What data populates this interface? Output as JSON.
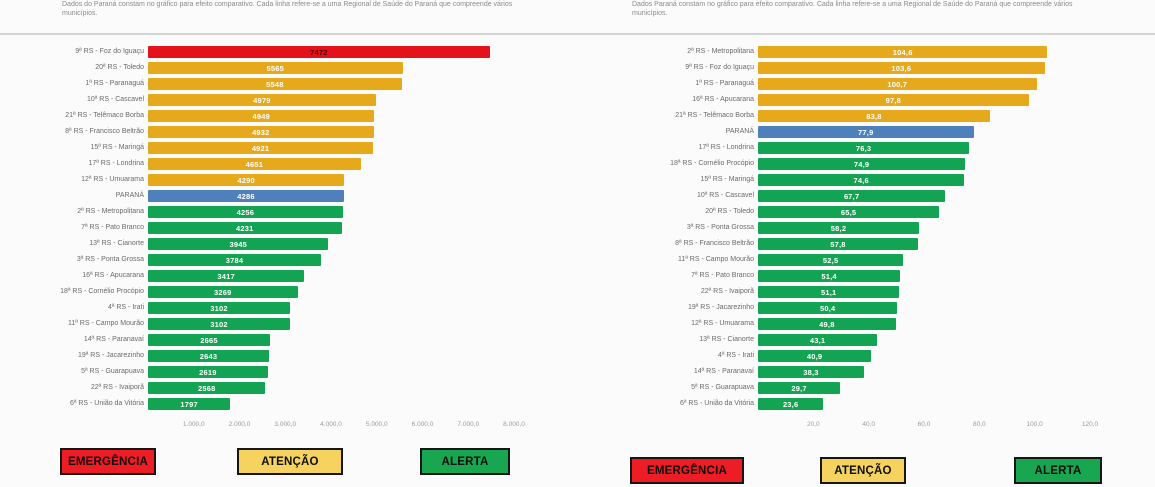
{
  "palette": {
    "red": "#e4131b",
    "yellow": "#e6a91c",
    "green": "#13a453",
    "blue": "#4e80bc"
  },
  "legend_palette": {
    "red": "#ee1c24",
    "yellow": "#f6d35e",
    "green": "#18a750"
  },
  "chart_data": [
    {
      "type": "bar",
      "orientation": "horizontal",
      "note": "Dados do Paraná constam no gráfico para efeito comparativo. Cada linha refere-se a uma Regional de Saúde do Paraná que compreende vários municípios.",
      "categories": [
        "9ª RS - Foz do Iguaçu",
        "20ª RS - Toledo",
        "1ª RS - Paranaguá",
        "10ª RS - Cascavel",
        "21ª RS - Telêmaco Borba",
        "8ª RS - Francisco Beltrão",
        "15ª RS - Maringá",
        "17ª RS - Londrina",
        "12ª RS - Umuarama",
        "PARANÁ",
        "2ª RS - Metropolitana",
        "7ª RS - Pato Branco",
        "13ª RS - Cianorte",
        "3ª RS - Ponta Grossa",
        "16ª RS - Apucarana",
        "18ª RS - Cornélio Procópio",
        "4ª RS - Irati",
        "11ª RS - Campo Mourão",
        "14ª RS - Paranavaí",
        "19ª RS - Jacarezinho",
        "5ª RS - Guarapuava",
        "22ª RS - Ivaiporã",
        "6ª RS - União da Vitória"
      ],
      "values": [
        7472,
        5565,
        5548,
        4979,
        4949,
        4932,
        4921,
        4651,
        4290,
        4286,
        4256,
        4231,
        3945,
        3784,
        3417,
        3269,
        3102,
        3102,
        2665,
        2643,
        2619,
        2568,
        1797
      ],
      "value_labels": [
        "7472",
        "5565",
        "5548",
        "4979",
        "4949",
        "4932",
        "4921",
        "4651",
        "4290",
        "4286",
        "4256",
        "4231",
        "3945",
        "3784",
        "3417",
        "3269",
        "3102",
        "3102",
        "2665",
        "2643",
        "2619",
        "2568",
        "1797"
      ],
      "row_colors": [
        "red",
        "yellow",
        "yellow",
        "yellow",
        "yellow",
        "yellow",
        "yellow",
        "yellow",
        "yellow",
        "blue",
        "green",
        "green",
        "green",
        "green",
        "green",
        "green",
        "green",
        "green",
        "green",
        "green",
        "green",
        "green",
        "green"
      ],
      "xlim": [
        0,
        8000
      ],
      "xtick_values": [
        1000,
        2000,
        3000,
        4000,
        5000,
        6000,
        7000,
        8000
      ],
      "xtick_labels": [
        "1.000,0",
        "2.000,0",
        "3.000,0",
        "4.000,0",
        "5.000,0",
        "6.000,0",
        "7.000,0",
        "8.000,0"
      ],
      "grid": "off",
      "legend": [
        {
          "label": "EMERGÊNCIA",
          "color": "red"
        },
        {
          "label": "ATENÇÃO",
          "color": "yellow"
        },
        {
          "label": "ALERTA",
          "color": "green"
        }
      ]
    },
    {
      "type": "bar",
      "orientation": "horizontal",
      "note": "Dados Paraná constam no gráfico para efeito comparativo. Cada linha refere-se a uma Regional de Saúde do Paraná que compreende vários municípios.",
      "categories": [
        "2ª RS - Metropolitana",
        "9ª RS - Foz do Iguaçu",
        "1ª RS - Paranaguá",
        "16ª RS - Apucarana",
        "21ª RS - Telêmaco Borba",
        "PARANÁ",
        "17ª RS - Londrina",
        "18ª RS - Cornélio Procópio",
        "15ª RS - Maringá",
        "10ª RS - Cascavel",
        "20ª RS - Toledo",
        "3ª RS - Ponta Grossa",
        "8ª RS - Francisco Beltrão",
        "11ª RS - Campo Mourão",
        "7ª RS - Pato Branco",
        "22ª RS - Ivaiporã",
        "19ª RS - Jacarezinho",
        "12ª RS - Umuarama",
        "13ª RS - Cianorte",
        "4ª RS - Irati",
        "14ª RS - Paranavaí",
        "5ª RS - Guarapuava",
        "6ª RS - União da Vitória"
      ],
      "values": [
        104.6,
        103.6,
        100.7,
        97.8,
        83.8,
        77.9,
        76.3,
        74.9,
        74.6,
        67.7,
        65.5,
        58.2,
        57.8,
        52.5,
        51.4,
        51.1,
        50.4,
        49.8,
        43.1,
        40.9,
        38.3,
        29.7,
        23.6
      ],
      "value_labels": [
        "104,6",
        "103,6",
        "100,7",
        "97,8",
        "83,8",
        "77,9",
        "76,3",
        "74,9",
        "74,6",
        "67,7",
        "65,5",
        "58,2",
        "57,8",
        "52,5",
        "51,4",
        "51,1",
        "50,4",
        "49,8",
        "43,1",
        "40,9",
        "38,3",
        "29,7",
        "23,6"
      ],
      "row_colors": [
        "yellow",
        "yellow",
        "yellow",
        "yellow",
        "yellow",
        "blue",
        "green",
        "green",
        "green",
        "green",
        "green",
        "green",
        "green",
        "green",
        "green",
        "green",
        "green",
        "green",
        "green",
        "green",
        "green",
        "green",
        "green"
      ],
      "xlim": [
        0,
        120
      ],
      "xtick_values": [
        20,
        40,
        60,
        80,
        100,
        120
      ],
      "xtick_labels": [
        "20,0",
        "40,0",
        "60,0",
        "80,0",
        "100,0",
        "120,0"
      ],
      "grid": "off",
      "legend": [
        {
          "label": "EMERGÊNCIA",
          "color": "red"
        },
        {
          "label": "ATENÇÃO",
          "color": "yellow"
        },
        {
          "label": "ALERTA",
          "color": "green"
        }
      ]
    }
  ]
}
